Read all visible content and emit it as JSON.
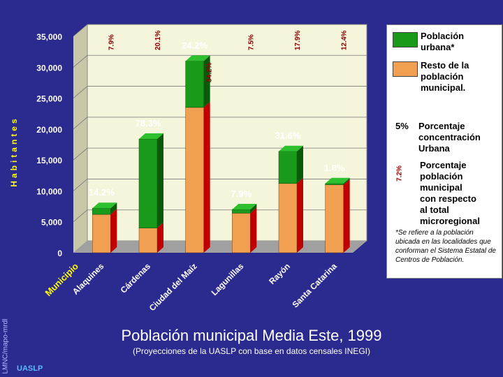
{
  "chart_data": {
    "type": "bar",
    "stacked": true,
    "three_d": true,
    "title": "Población municipal Media Este, 1999",
    "subtitle": "(Proyecciones de la UASLP con base en datos censales INEGI)",
    "ylabel": "Habitantes",
    "xlabel": "Municipio",
    "ylim": [
      0,
      35000
    ],
    "yticks": [
      "0",
      "5,000",
      "10,000",
      "15,000",
      "20,000",
      "25,000",
      "30,000",
      "35,000"
    ],
    "ytick_values": [
      0,
      5000,
      10000,
      15000,
      20000,
      25000,
      30000,
      35000
    ],
    "grid": true,
    "categories": [
      "Alaquines",
      "Cárdenas",
      "Ciudad del Maíz",
      "Lagunillas",
      "Rayón",
      "Santa Catarina"
    ],
    "series": [
      {
        "name": "Resto de la población municipal.",
        "color": "#f0a050",
        "values": [
          6200,
          4000,
          23500,
          6400,
          11200,
          11000
        ]
      },
      {
        "name": "Población urbana*",
        "color": "#1a9a1a",
        "values": [
          1000,
          14400,
          7500,
          600,
          5200,
          200
        ]
      }
    ],
    "urban_pct_labels": [
      "14.2%",
      "78.3%",
      "24.2%",
      "7.9%",
      "31.6%",
      "1.8%"
    ],
    "regional_pct_labels": [
      "7.9%",
      "20.1%",
      "34.2%",
      "7.5%",
      "17.9%",
      "12.4%"
    ]
  },
  "legend": {
    "urban_label_1": "Población",
    "urban_label_2": "urbana*",
    "rest_label_1": "Resto de la",
    "rest_label_2": "población",
    "rest_label_3": "municipal.",
    "pct_example": "5%",
    "conc_1": "Porcentaje",
    "conc_2": "concentración",
    "conc_3": "Urbana",
    "reg_example": "7.2%",
    "reg_1": "Porcentaje",
    "reg_2": "población",
    "reg_3": "municipal",
    "reg_4": "con respecto",
    "reg_5": "al total",
    "reg_6": "microregional",
    "note": "*Se refiere a la población ubicada en las localidades que conforman el Sistema Estatal de Centros de Población."
  },
  "credit": "LMNC/mapo-mrdl",
  "institution": "UASLP",
  "colors": {
    "background": "#2b2b8f",
    "urban": "#1a9a1a",
    "rest": "#f0a050",
    "side": "#c00000",
    "plot_bg": "#f5f5dc"
  }
}
